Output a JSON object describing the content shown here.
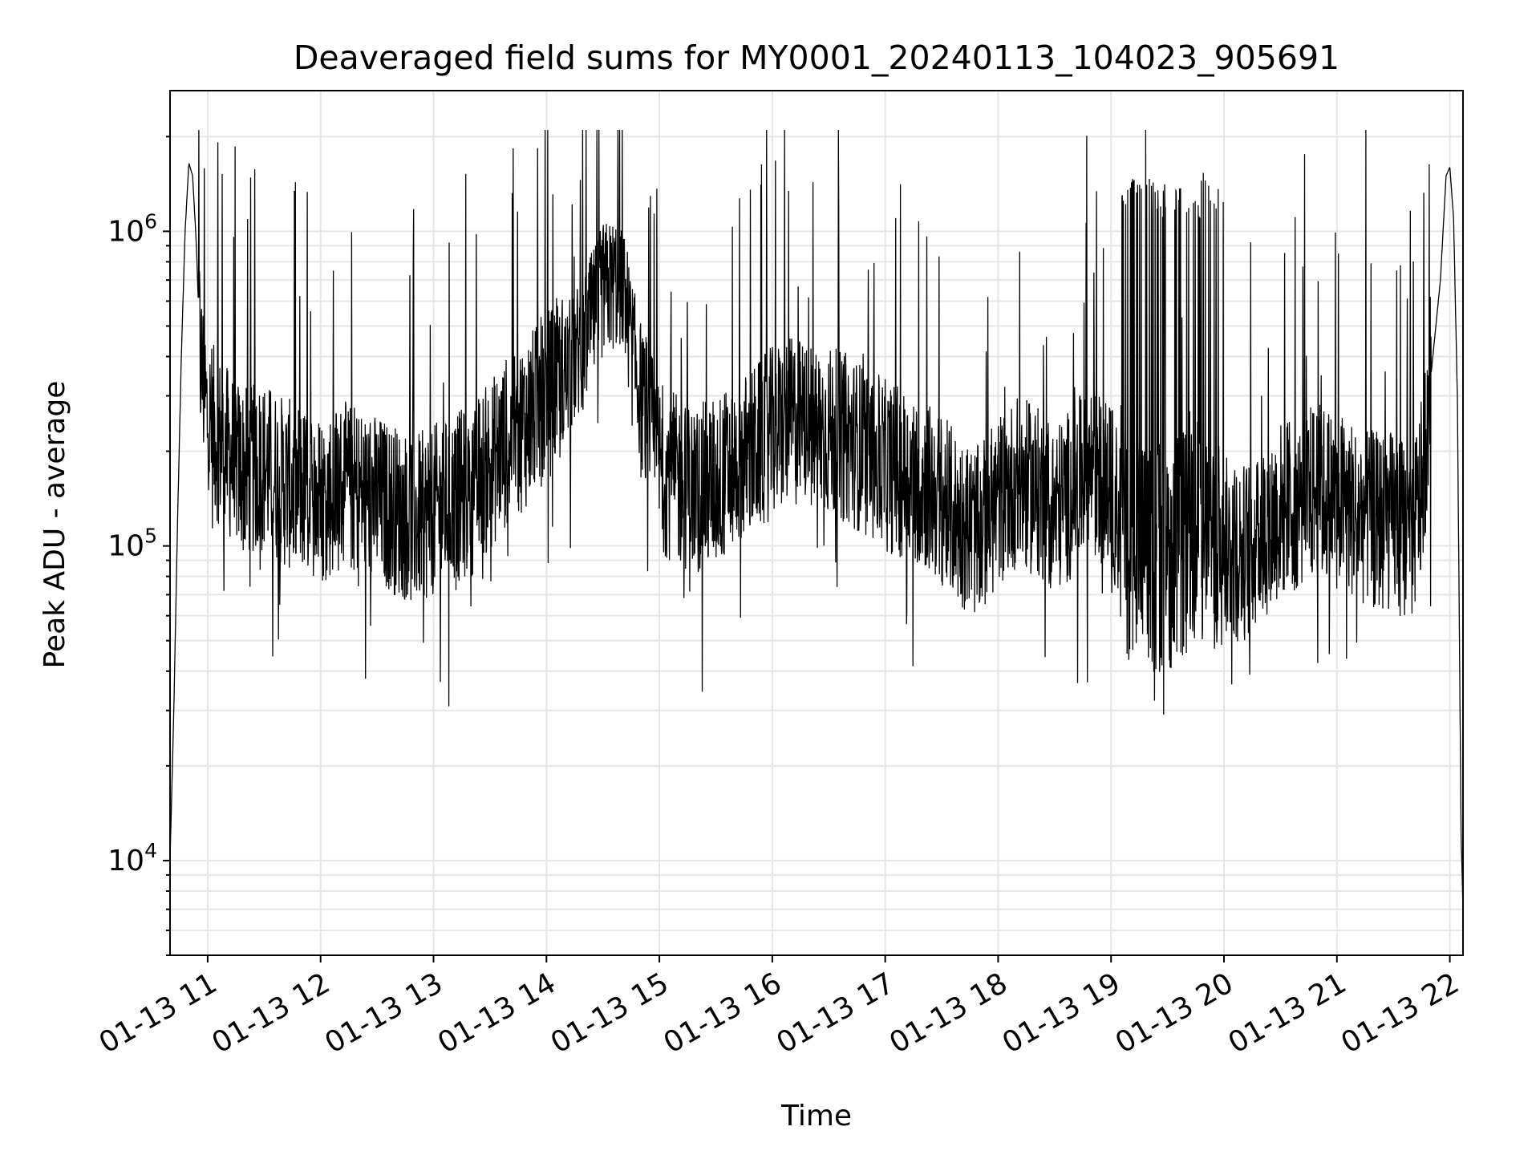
{
  "chart_data": {
    "type": "line",
    "title": "Deaveraged field sums for MY0001_20240113_104023_905691",
    "xlabel": "Time",
    "ylabel": "Peak ADU - average",
    "yscale": "log",
    "ylim": [
      5000,
      2800000
    ],
    "xlim": [
      "2024-01-13 10:40",
      "2024-01-13 22:07"
    ],
    "x_ticks": [
      "01-13 11",
      "01-13 12",
      "01-13 13",
      "01-13 14",
      "01-13 15",
      "01-13 16",
      "01-13 17",
      "01-13 18",
      "01-13 19",
      "01-13 20",
      "01-13 21",
      "01-13 22"
    ],
    "y_ticks": [
      {
        "value": 10000,
        "base": "10",
        "exp": "4"
      },
      {
        "value": 100000,
        "base": "10",
        "exp": "5"
      },
      {
        "value": 1000000,
        "base": "10",
        "exp": "6"
      }
    ],
    "grid": true,
    "line_color": "#000000",
    "series": [
      {
        "x": [
          "2024-01-13 10:40",
          "2024-01-13 10:42",
          "2024-01-13 10:44",
          "2024-01-13 10:46",
          "2024-01-13 10:48",
          "2024-01-13 10:50",
          "2024-01-13 10:52",
          "2024-01-13 10:54",
          "2024-01-13 10:56",
          "2024-01-13 11:00",
          "2024-01-13 11:10",
          "2024-01-13 11:20",
          "2024-01-13 11:30",
          "2024-01-13 11:40",
          "2024-01-13 11:50",
          "2024-01-13 12:00",
          "2024-01-13 12:10",
          "2024-01-13 12:20",
          "2024-01-13 12:30",
          "2024-01-13 12:40",
          "2024-01-13 12:50",
          "2024-01-13 13:00",
          "2024-01-13 13:10",
          "2024-01-13 13:20",
          "2024-01-13 13:30",
          "2024-01-13 13:40",
          "2024-01-13 13:50",
          "2024-01-13 14:00",
          "2024-01-13 14:10",
          "2024-01-13 14:20",
          "2024-01-13 14:30",
          "2024-01-13 14:40",
          "2024-01-13 14:50",
          "2024-01-13 15:00",
          "2024-01-13 15:10",
          "2024-01-13 15:20",
          "2024-01-13 15:30",
          "2024-01-13 15:40",
          "2024-01-13 15:50",
          "2024-01-13 16:00",
          "2024-01-13 16:10",
          "2024-01-13 16:20",
          "2024-01-13 16:30",
          "2024-01-13 16:40",
          "2024-01-13 16:50",
          "2024-01-13 17:00",
          "2024-01-13 17:10",
          "2024-01-13 17:20",
          "2024-01-13 17:30",
          "2024-01-13 17:40",
          "2024-01-13 17:50",
          "2024-01-13 18:00",
          "2024-01-13 18:10",
          "2024-01-13 18:20",
          "2024-01-13 18:30",
          "2024-01-13 18:40",
          "2024-01-13 18:50",
          "2024-01-13 19:00",
          "2024-01-13 19:10",
          "2024-01-13 19:20",
          "2024-01-13 19:30",
          "2024-01-13 19:40",
          "2024-01-13 19:50",
          "2024-01-13 20:00",
          "2024-01-13 20:10",
          "2024-01-13 20:20",
          "2024-01-13 20:30",
          "2024-01-13 20:40",
          "2024-01-13 20:50",
          "2024-01-13 21:00",
          "2024-01-13 21:10",
          "2024-01-13 21:20",
          "2024-01-13 21:30",
          "2024-01-13 21:40",
          "2024-01-13 21:45",
          "2024-01-13 21:50",
          "2024-01-13 21:55",
          "2024-01-13 21:58",
          "2024-01-13 22:00",
          "2024-01-13 22:02",
          "2024-01-13 22:04",
          "2024-01-13 22:06",
          "2024-01-13 22:07"
        ],
        "values": [
          10000,
          30000,
          120000,
          400000,
          1000000,
          1650000,
          1500000,
          900000,
          400000,
          250000,
          200000,
          170000,
          180000,
          160000,
          150000,
          140000,
          155000,
          150000,
          140000,
          130000,
          120000,
          130000,
          140000,
          150000,
          180000,
          220000,
          250000,
          300000,
          350000,
          450000,
          650000,
          700000,
          300000,
          180000,
          160000,
          150000,
          160000,
          180000,
          200000,
          230000,
          250000,
          240000,
          230000,
          220000,
          200000,
          180000,
          170000,
          160000,
          140000,
          120000,
          110000,
          140000,
          160000,
          150000,
          130000,
          150000,
          180000,
          150000,
          100000,
          90000,
          95000,
          100000,
          110000,
          100000,
          95000,
          110000,
          130000,
          140000,
          150000,
          140000,
          130000,
          120000,
          120000,
          110000,
          150000,
          350000,
          700000,
          1500000,
          1600000,
          1100000,
          300000,
          12000,
          7000
        ]
      }
    ],
    "noise_amplitude_by_hour": [
      {
        "from": "2024-01-13 10:55",
        "to": "2024-01-13 14:10",
        "spread": 1.9
      },
      {
        "from": "2024-01-13 14:10",
        "to": "2024-01-13 14:50",
        "spread": 1.5
      },
      {
        "from": "2024-01-13 14:50",
        "to": "2024-01-13 19:05",
        "spread": 1.9
      },
      {
        "from": "2024-01-13 19:05",
        "to": "2024-01-13 20:00",
        "spread": 2.6
      },
      {
        "from": "2024-01-13 20:00",
        "to": "2024-01-13 21:50",
        "spread": 2.0
      }
    ]
  }
}
